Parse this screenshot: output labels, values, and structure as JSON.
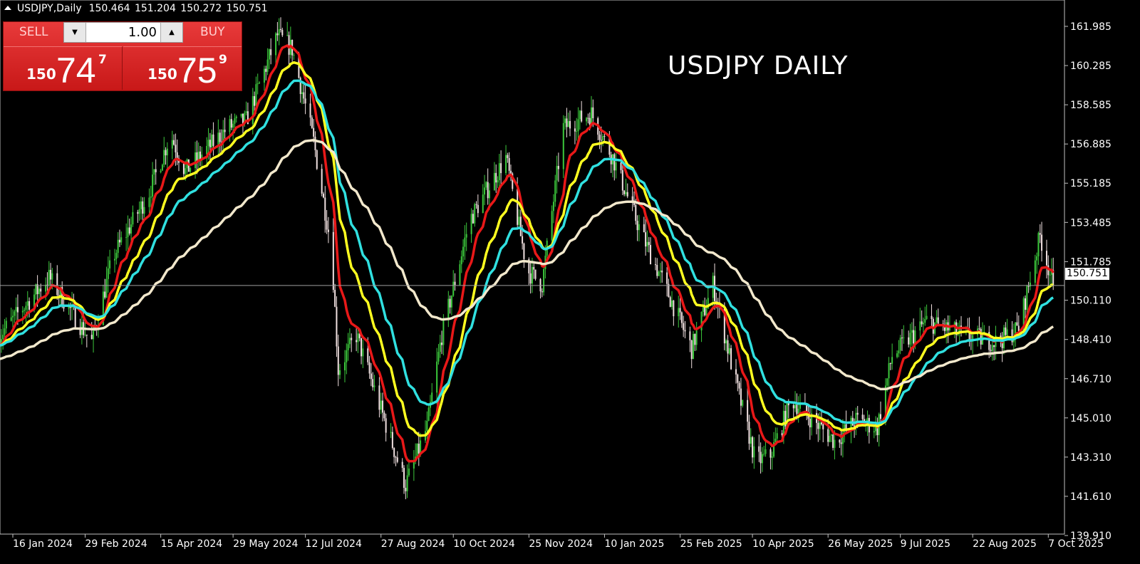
{
  "header": {
    "symbol_timeframe": "USDJPY,Daily",
    "ohlc": "150.464 151.204 150.272 150.751"
  },
  "trade_panel": {
    "sell_label": "SELL",
    "buy_label": "BUY",
    "lot_value": "1.00",
    "sell_price": {
      "prefix": "150",
      "main": "74",
      "sup": "7"
    },
    "buy_price": {
      "prefix": "150",
      "main": "75",
      "sup": "9"
    }
  },
  "chart_data": {
    "type": "candlestick",
    "title": "USDJPY DAILY",
    "symbol": "USDJPY",
    "timeframe": "Daily",
    "current_price": "150.751",
    "ylim": [
      139.91,
      161.985
    ],
    "y_ticks": [
      "161.985",
      "160.285",
      "158.585",
      "156.885",
      "155.185",
      "153.485",
      "151.785",
      "150.110",
      "148.410",
      "146.710",
      "145.010",
      "143.310",
      "141.610",
      "139.910"
    ],
    "x_ticks": [
      "16 Jan 2024",
      "29 Feb 2024",
      "15 Apr 2024",
      "29 May 2024",
      "12 Jul 2024",
      "27 Aug 2024",
      "10 Oct 2024",
      "25 Nov 2024",
      "10 Jan 2025",
      "25 Feb 2025",
      "10 Apr 2025",
      "26 May 2025",
      "9 Jul 2025",
      "22 Aug 2025",
      "7 Oct 2025"
    ],
    "x_tick_dates": [
      "2024-01-16",
      "2024-02-29",
      "2024-04-15",
      "2024-05-29",
      "2024-07-12",
      "2024-08-27",
      "2024-10-10",
      "2024-11-25",
      "2025-01-10",
      "2025-02-25",
      "2025-04-10",
      "2025-05-26",
      "2025-07-09",
      "2025-08-22",
      "2025-10-07"
    ],
    "close_approx": [
      [
        "2024-01-08",
        148.6
      ],
      [
        "2024-02-07",
        151.1
      ],
      [
        "2024-03-04",
        148.3
      ],
      [
        "2024-03-17",
        152.0
      ],
      [
        "2024-04-08",
        154.8
      ],
      [
        "2024-04-21",
        157.3
      ],
      [
        "2024-04-30",
        155.7
      ],
      [
        "2024-05-26",
        157.6
      ],
      [
        "2024-06-06",
        157.9
      ],
      [
        "2024-06-25",
        161.6
      ],
      [
        "2024-07-04",
        161.0
      ],
      [
        "2024-07-17",
        157.0
      ],
      [
        "2024-07-28",
        152.3
      ],
      [
        "2024-08-01",
        147.1
      ],
      [
        "2024-08-12",
        148.6
      ],
      [
        "2024-08-25",
        145.8
      ],
      [
        "2024-09-11",
        142.1
      ],
      [
        "2024-09-24",
        144.6
      ],
      [
        "2024-10-03",
        148.6
      ],
      [
        "2024-10-20",
        153.6
      ],
      [
        "2024-11-11",
        156.3
      ],
      [
        "2024-11-24",
        151.4
      ],
      [
        "2024-12-03",
        150.8
      ],
      [
        "2024-12-16",
        157.6
      ],
      [
        "2025-01-02",
        158.2
      ],
      [
        "2025-01-15",
        156.3
      ],
      [
        "2025-02-02",
        152.9
      ],
      [
        "2025-02-19",
        150.2
      ],
      [
        "2025-03-04",
        148.0
      ],
      [
        "2025-03-17",
        150.8
      ],
      [
        "2025-03-30",
        146.8
      ],
      [
        "2025-04-12",
        143.1
      ],
      [
        "2025-04-21",
        143.4
      ],
      [
        "2025-05-04",
        145.8
      ],
      [
        "2025-05-17",
        144.9
      ],
      [
        "2025-05-30",
        144.0
      ],
      [
        "2025-06-12",
        144.9
      ],
      [
        "2025-06-25",
        144.6
      ],
      [
        "2025-07-04",
        147.7
      ],
      [
        "2025-07-25",
        149.2
      ],
      [
        "2025-08-16",
        148.6
      ],
      [
        "2025-09-06",
        148.3
      ],
      [
        "2025-09-19",
        148.9
      ],
      [
        "2025-10-02",
        152.9
      ],
      [
        "2025-10-10",
        150.751
      ]
    ],
    "moving_averages": [
      {
        "color": "#e81818"
      },
      {
        "color": "#ffff20"
      },
      {
        "color": "#30e0e0"
      },
      {
        "color": "#f2e8cc"
      }
    ],
    "colors": {
      "background": "#000000",
      "bull": "#3cc83c",
      "bear": "#f0e0e0",
      "current_line": "#a0a0a0"
    }
  }
}
